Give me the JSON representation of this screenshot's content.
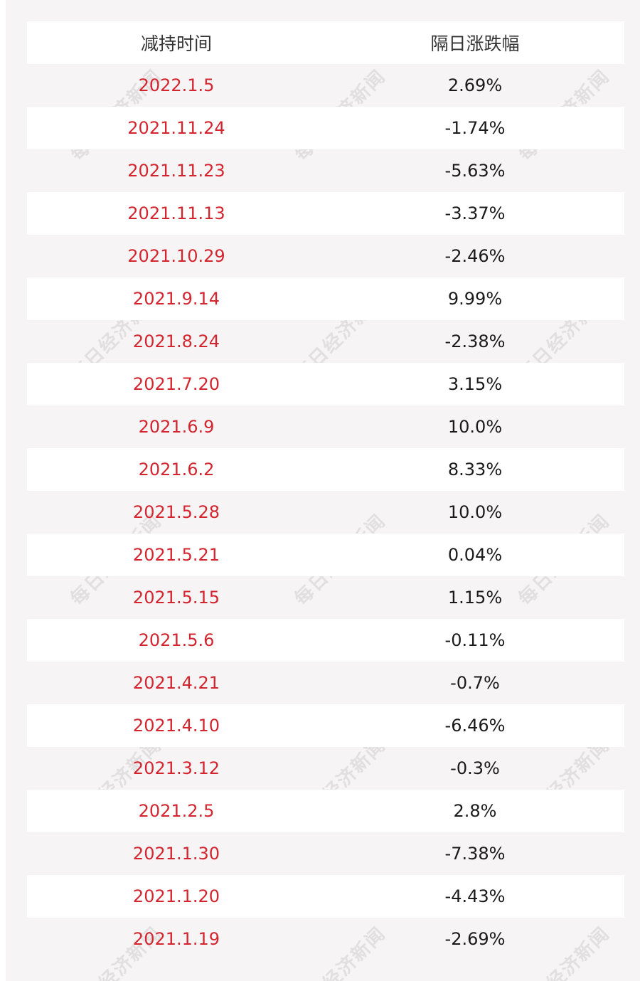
{
  "headers": {
    "col1": "减持时间",
    "col2": "隔日涨跌幅"
  },
  "rows": [
    {
      "date": "2022.1.5",
      "change": "2.69%"
    },
    {
      "date": "2021.11.24",
      "change": "-1.74%"
    },
    {
      "date": "2021.11.23",
      "change": "-5.63%"
    },
    {
      "date": "2021.11.13",
      "change": "-3.37%"
    },
    {
      "date": "2021.10.29",
      "change": "-2.46%"
    },
    {
      "date": "2021.9.14",
      "change": "9.99%"
    },
    {
      "date": "2021.8.24",
      "change": "-2.38%"
    },
    {
      "date": "2021.7.20",
      "change": "3.15%"
    },
    {
      "date": "2021.6.9",
      "change": "10.0%"
    },
    {
      "date": "2021.6.2",
      "change": "8.33%"
    },
    {
      "date": "2021.5.28",
      "change": "10.0%"
    },
    {
      "date": "2021.5.21",
      "change": "0.04%"
    },
    {
      "date": "2021.5.15",
      "change": "1.15%"
    },
    {
      "date": "2021.5.6",
      "change": "-0.11%"
    },
    {
      "date": "2021.4.21",
      "change": "-0.7%"
    },
    {
      "date": "2021.4.10",
      "change": "-6.46%"
    },
    {
      "date": "2021.3.12",
      "change": "-0.3%"
    },
    {
      "date": "2021.2.5",
      "change": "2.8%"
    },
    {
      "date": "2021.1.30",
      "change": "-7.38%"
    },
    {
      "date": "2021.1.20",
      "change": "-4.43%"
    },
    {
      "date": "2021.1.19",
      "change": "-2.69%"
    }
  ],
  "watermark": "每日经济新闻",
  "colors": {
    "date": "#d4252f",
    "value": "#1a1a1a",
    "background": "#f7f4f5",
    "row_alt": "#ffffff"
  }
}
